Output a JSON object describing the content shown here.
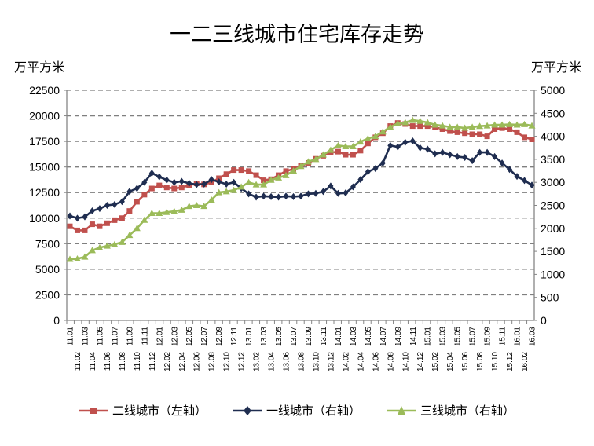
{
  "chart_data": {
    "type": "line",
    "title": "一二三线城市住宅库存走势",
    "ylabel_left": "万平方米",
    "ylabel_right": "万平方米",
    "y_left": {
      "min": 0,
      "max": 22500,
      "step": 2500,
      "ticks": [
        "0",
        "2500",
        "5000",
        "7500",
        "10000",
        "12500",
        "15000",
        "17500",
        "20000",
        "22500"
      ]
    },
    "y_right": {
      "min": 0,
      "max": 5000,
      "step": 500,
      "ticks": [
        "0",
        "500",
        "1000",
        "1500",
        "2000",
        "2500",
        "3000",
        "3500",
        "4000",
        "4500",
        "5000"
      ]
    },
    "grid": true,
    "legend_position": "bottom",
    "x": [
      "11.01",
      "11.02",
      "11.03",
      "11.04",
      "11.05",
      "11.06",
      "11.07",
      "11.08",
      "11.09",
      "11.10",
      "11.11",
      "11.12",
      "12.01",
      "12.02",
      "12.03",
      "12.04",
      "12.05",
      "12.06",
      "12.07",
      "12.08",
      "12.09",
      "12.10",
      "12.11",
      "12.12",
      "13.01",
      "13.02",
      "13.03",
      "13.04",
      "13.05",
      "13.06",
      "13.07",
      "13.08",
      "13.09",
      "13.10",
      "13.11",
      "13.12",
      "14.01",
      "14.02",
      "14.03",
      "14.04",
      "14.05",
      "14.06",
      "14.07",
      "14.08",
      "14.09",
      "14.10",
      "14.11",
      "14.12",
      "15.01",
      "15.02",
      "15.03",
      "15.04",
      "15.05",
      "15.06",
      "15.07",
      "15.08",
      "15.09",
      "15.10",
      "15.11",
      "15.12",
      "16.01",
      "16.02",
      "16.03"
    ],
    "series": [
      {
        "name": "二线城市（左轴）",
        "axis": "left",
        "color": "#C0504D",
        "marker": "square",
        "values": [
          9200,
          8800,
          8800,
          9400,
          9200,
          9500,
          9800,
          10000,
          10700,
          11600,
          12300,
          12900,
          13200,
          13000,
          12900,
          13000,
          13200,
          13400,
          13300,
          13500,
          13900,
          14300,
          14700,
          14700,
          14600,
          14200,
          13700,
          13800,
          14200,
          14600,
          14800,
          15100,
          15400,
          15800,
          16100,
          16400,
          16500,
          16200,
          16200,
          16600,
          17300,
          17900,
          18300,
          19000,
          19300,
          19200,
          19000,
          19000,
          19000,
          18900,
          18700,
          18500,
          18400,
          18300,
          18200,
          18200,
          18000,
          18700,
          18800,
          18700,
          18400,
          17900,
          17700
        ]
      },
      {
        "name": "一线城市（右轴）",
        "axis": "right",
        "color": "#1F2D50",
        "marker": "diamond",
        "values": [
          2270,
          2220,
          2250,
          2380,
          2430,
          2500,
          2520,
          2580,
          2800,
          2870,
          3000,
          3200,
          3120,
          3050,
          3000,
          3020,
          2980,
          2950,
          2960,
          3060,
          3010,
          2960,
          3000,
          2870,
          2750,
          2680,
          2700,
          2690,
          2680,
          2700,
          2690,
          2700,
          2750,
          2760,
          2800,
          2920,
          2760,
          2770,
          2900,
          3060,
          3230,
          3300,
          3420,
          3800,
          3770,
          3870,
          3900,
          3750,
          3720,
          3620,
          3650,
          3600,
          3560,
          3540,
          3470,
          3650,
          3650,
          3560,
          3420,
          3280,
          3130,
          3040,
          2940
        ]
      },
      {
        "name": "三线城市（右轴）",
        "axis": "right",
        "color": "#9BBB59",
        "marker": "triangle",
        "values": [
          1330,
          1340,
          1380,
          1520,
          1580,
          1620,
          1650,
          1700,
          1850,
          2000,
          2180,
          2330,
          2330,
          2350,
          2370,
          2400,
          2480,
          2500,
          2480,
          2620,
          2780,
          2800,
          2830,
          2900,
          3000,
          2950,
          2950,
          3050,
          3100,
          3150,
          3250,
          3350,
          3450,
          3500,
          3600,
          3700,
          3800,
          3780,
          3780,
          3880,
          3950,
          4000,
          4100,
          4200,
          4280,
          4300,
          4350,
          4330,
          4300,
          4250,
          4230,
          4200,
          4200,
          4180,
          4200,
          4220,
          4230,
          4250,
          4250,
          4260,
          4250,
          4260,
          4230
        ]
      }
    ]
  }
}
